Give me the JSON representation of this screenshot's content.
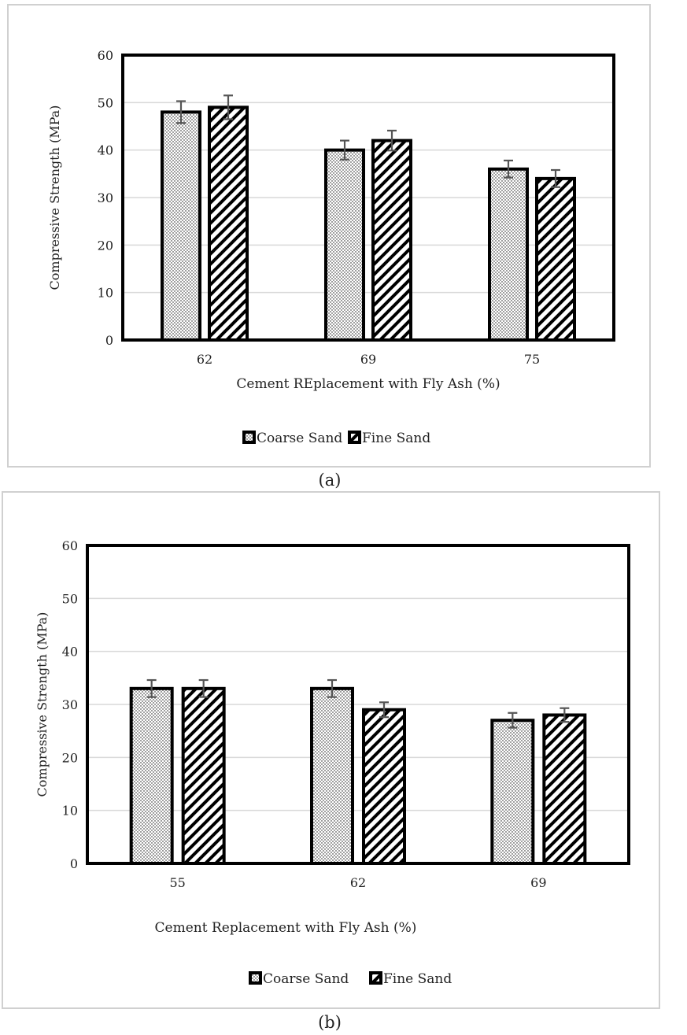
{
  "chart_data": [
    {
      "type": "bar",
      "caption": "(a)",
      "categories": [
        "62",
        "69",
        "75"
      ],
      "xlabel": "Cement REplacement with Fly Ash (%)",
      "ylabel": "Compressive Strength (MPa)",
      "ylim": [
        0,
        60
      ],
      "yticks": [
        0,
        10,
        20,
        30,
        40,
        50,
        60
      ],
      "grid": true,
      "legend_position": "bottom",
      "series": [
        {
          "name": "Coarse Sand",
          "values": [
            48,
            40,
            36
          ],
          "error": [
            2.3,
            2.0,
            1.8
          ],
          "pattern": "dots"
        },
        {
          "name": "Fine Sand",
          "values": [
            49,
            42,
            34
          ],
          "error": [
            2.5,
            2.1,
            1.8
          ],
          "pattern": "diagonal"
        }
      ]
    },
    {
      "type": "bar",
      "caption": "(b)",
      "categories": [
        "55",
        "62",
        "69"
      ],
      "xlabel": "Cement Replacement with Fly Ash (%)",
      "ylabel": "Compressive Strength (MPa)",
      "ylim": [
        0,
        60
      ],
      "yticks": [
        0,
        10,
        20,
        30,
        40,
        50,
        60
      ],
      "grid": true,
      "legend_position": "bottom",
      "series": [
        {
          "name": "Coarse Sand",
          "values": [
            33,
            33,
            27
          ],
          "error": [
            1.6,
            1.6,
            1.4
          ],
          "pattern": "dots"
        },
        {
          "name": "Fine Sand",
          "values": [
            33,
            29,
            28
          ],
          "error": [
            1.6,
            1.4,
            1.3
          ],
          "pattern": "diagonal"
        }
      ]
    }
  ],
  "colors": {
    "bar_border": "#000000",
    "grid": "#d9d9d9",
    "error_bar": "#555555",
    "panel_border": "#d0d0d0"
  }
}
